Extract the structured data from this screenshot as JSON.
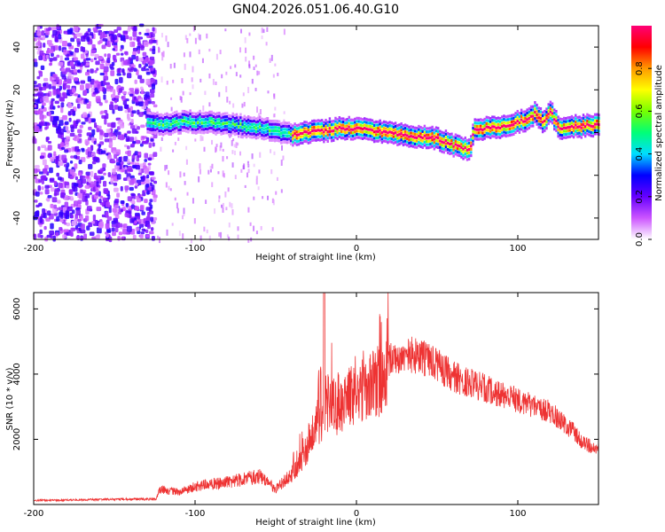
{
  "title": "GN04.2026.051.06.40.G10",
  "chart_data": [
    {
      "type": "heatmap",
      "xlabel": "Height of straight line (km)",
      "ylabel": "Frequency (Hz)",
      "xlim": [
        -200,
        150
      ],
      "ylim": [
        -50,
        50
      ],
      "x_ticks": [
        "-200",
        "-100",
        "0",
        "100"
      ],
      "y_ticks": [
        "-40",
        "-20",
        "0",
        "20",
        "40"
      ],
      "colorbar": {
        "label": "Normalized spectral amplitude",
        "range": [
          0,
          1
        ],
        "ticks": [
          "0.0",
          "0.2",
          "0.4",
          "0.6",
          "0.8"
        ],
        "colors": [
          "#ffffff",
          "#cc55ff",
          "#6600ff",
          "#0000ff",
          "#00ddff",
          "#00ff77",
          "#77ff00",
          "#ffff00",
          "#ff9900",
          "#ff0000",
          "#ff0077"
        ]
      },
      "ridge": {
        "x": [
          -130,
          -120,
          -110,
          -100,
          -90,
          -80,
          -70,
          -60,
          -50,
          -40,
          -30,
          -20,
          -10,
          0,
          10,
          20,
          30,
          40,
          50,
          60,
          70,
          72,
          80,
          90,
          100,
          105,
          110,
          115,
          120,
          125,
          130,
          140,
          150
        ],
        "y": [
          5,
          4,
          5,
          5,
          5,
          4,
          3,
          2,
          1,
          -1,
          0,
          1,
          2,
          2,
          1,
          0,
          -1,
          -2,
          -3,
          -6,
          -8,
          1,
          2,
          3,
          5,
          6,
          9,
          5,
          10,
          2,
          3,
          3,
          4
        ]
      },
      "noise_region_x": [
        -200,
        -125
      ]
    },
    {
      "type": "line",
      "xlabel": "Height of straight line (km)",
      "ylabel": "SNR (10 * v/v)",
      "xlim": [
        -200,
        150
      ],
      "ylim": [
        0,
        6500
      ],
      "x_ticks": [
        "-200",
        "-100",
        "0",
        "100"
      ],
      "y_ticks": [
        "2000",
        "4000",
        "6000"
      ],
      "color": "#ee3333",
      "envelope": {
        "x": [
          -200,
          -140,
          -124,
          -122,
          -110,
          -100,
          -80,
          -60,
          -50,
          -40,
          -30,
          -25,
          -20,
          -18,
          -10,
          0,
          10,
          20,
          30,
          40,
          50,
          60,
          80,
          100,
          120,
          135,
          140,
          150
        ],
        "y": [
          150,
          200,
          200,
          600,
          500,
          700,
          900,
          1100,
          600,
          1200,
          2200,
          3200,
          3500,
          4000,
          3800,
          4400,
          4800,
          5000,
          5200,
          5100,
          4800,
          4400,
          4000,
          3600,
          3200,
          2500,
          2100,
          1900
        ]
      },
      "spike": {
        "x": -20,
        "y": 6500
      }
    }
  ]
}
